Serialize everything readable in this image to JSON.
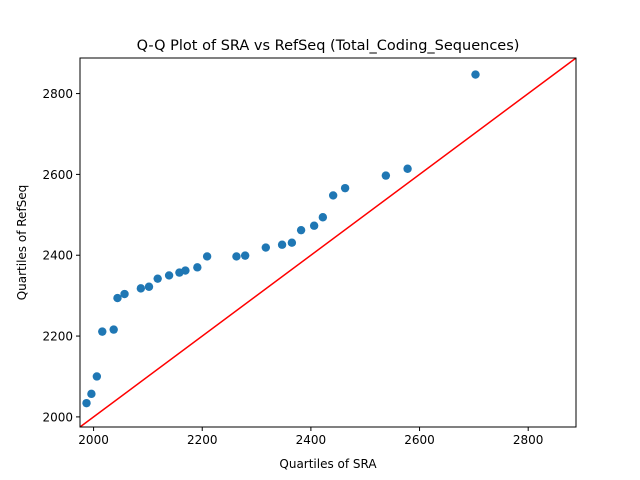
{
  "chart_data": {
    "type": "scatter",
    "title": "Q-Q Plot of SRA vs RefSeq (Total_Coding_Sequences)",
    "xlabel": "Quartiles of SRA",
    "ylabel": "Quartiles of RefSeq",
    "xlim": [
      1975,
      2888
    ],
    "ylim": [
      1975,
      2888
    ],
    "xticks": [
      2000,
      2200,
      2400,
      2600,
      2800
    ],
    "yticks": [
      2000,
      2200,
      2400,
      2600,
      2800
    ],
    "grid": false,
    "points": {
      "color": "#1f77b4",
      "x": [
        1987,
        1996,
        2006,
        2016,
        2037,
        2044,
        2057,
        2087,
        2102,
        2118,
        2139,
        2158,
        2169,
        2191,
        2209,
        2263,
        2279,
        2317,
        2347,
        2365,
        2382,
        2406,
        2422,
        2441,
        2463,
        2538,
        2578,
        2703
      ],
      "y": [
        2034,
        2057,
        2100,
        2211,
        2216,
        2294,
        2304,
        2318,
        2322,
        2342,
        2350,
        2357,
        2362,
        2370,
        2397,
        2397,
        2399,
        2419,
        2426,
        2431,
        2462,
        2473,
        2494,
        2548,
        2566,
        2597,
        2614,
        2847
      ]
    },
    "reference_line": {
      "color": "#ff0000",
      "from": [
        1975,
        1975
      ],
      "to": [
        2888,
        2888
      ]
    }
  }
}
